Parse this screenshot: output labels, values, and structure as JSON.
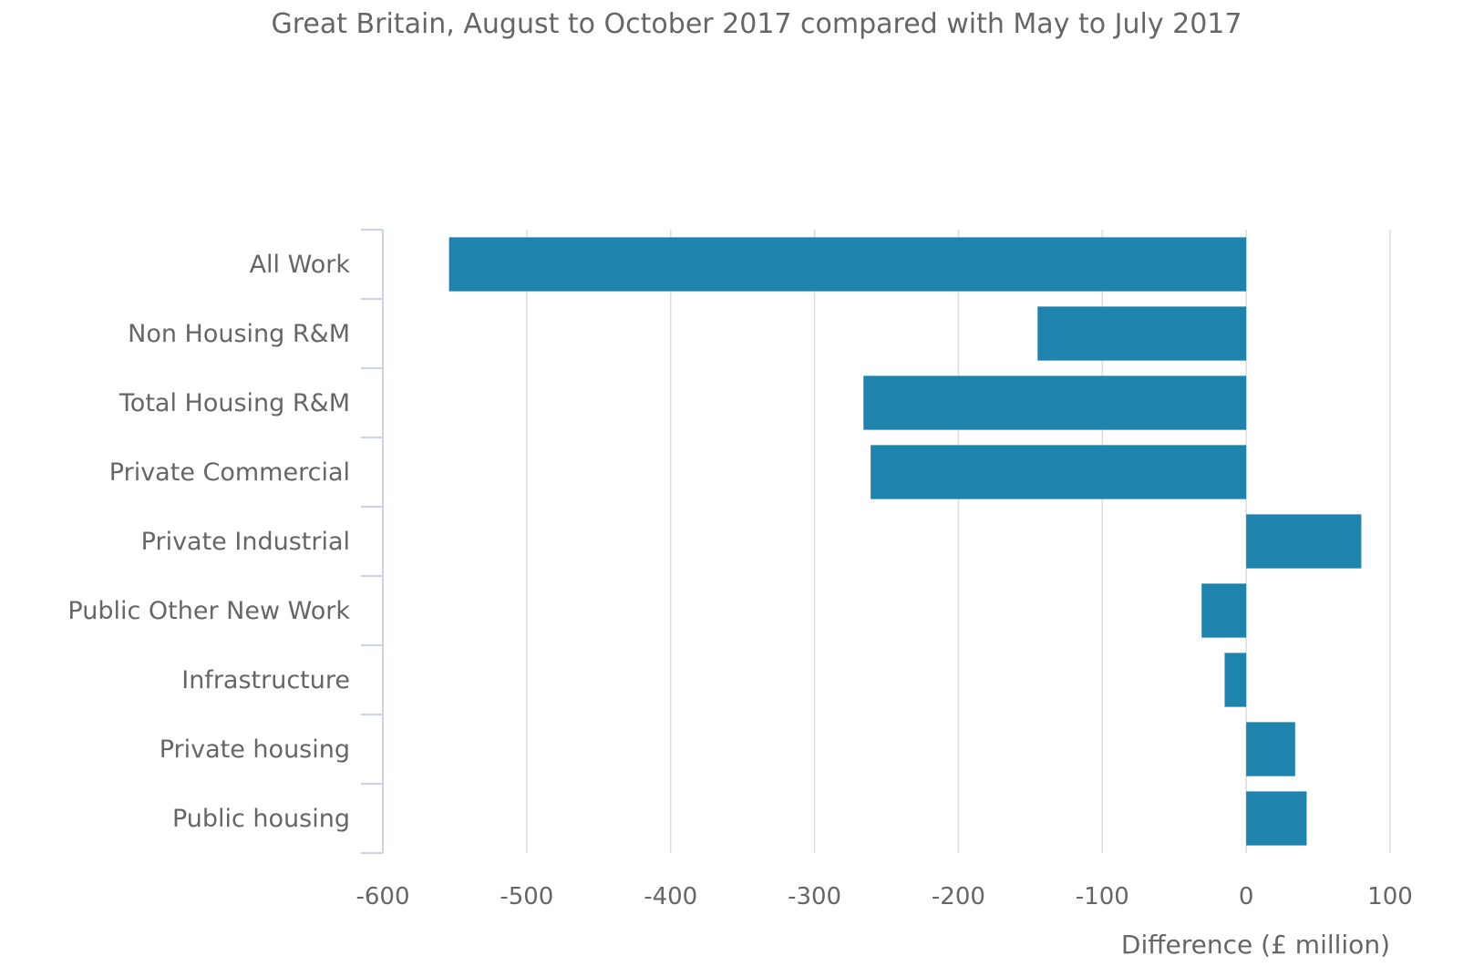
{
  "chart_data": {
    "type": "bar",
    "orientation": "horizontal",
    "subtitle": "Great Britain, August to October 2017 compared with May to July 2017",
    "xlabel": "Difference (£ million)",
    "ylabel": "",
    "xlim": [
      -600,
      100
    ],
    "xticks": [
      -600,
      -500,
      -400,
      -300,
      -200,
      -100,
      0,
      100
    ],
    "xtick_labels": [
      "-600",
      "-500",
      "-400",
      "-300",
      "-200",
      "-100",
      "0",
      "100"
    ],
    "categories": [
      "All Work",
      "Non Housing R&M",
      "Total Housing R&M",
      "Private Commercial",
      "Private Industrial",
      "Public Other New Work",
      "Infrastructure",
      "Private housing",
      "Public housing"
    ],
    "values": [
      -554,
      -145,
      -266,
      -261,
      80,
      -31,
      -15,
      34,
      42
    ],
    "grid": "vertical",
    "legend": "none",
    "bar_color": "#1f84ad"
  }
}
